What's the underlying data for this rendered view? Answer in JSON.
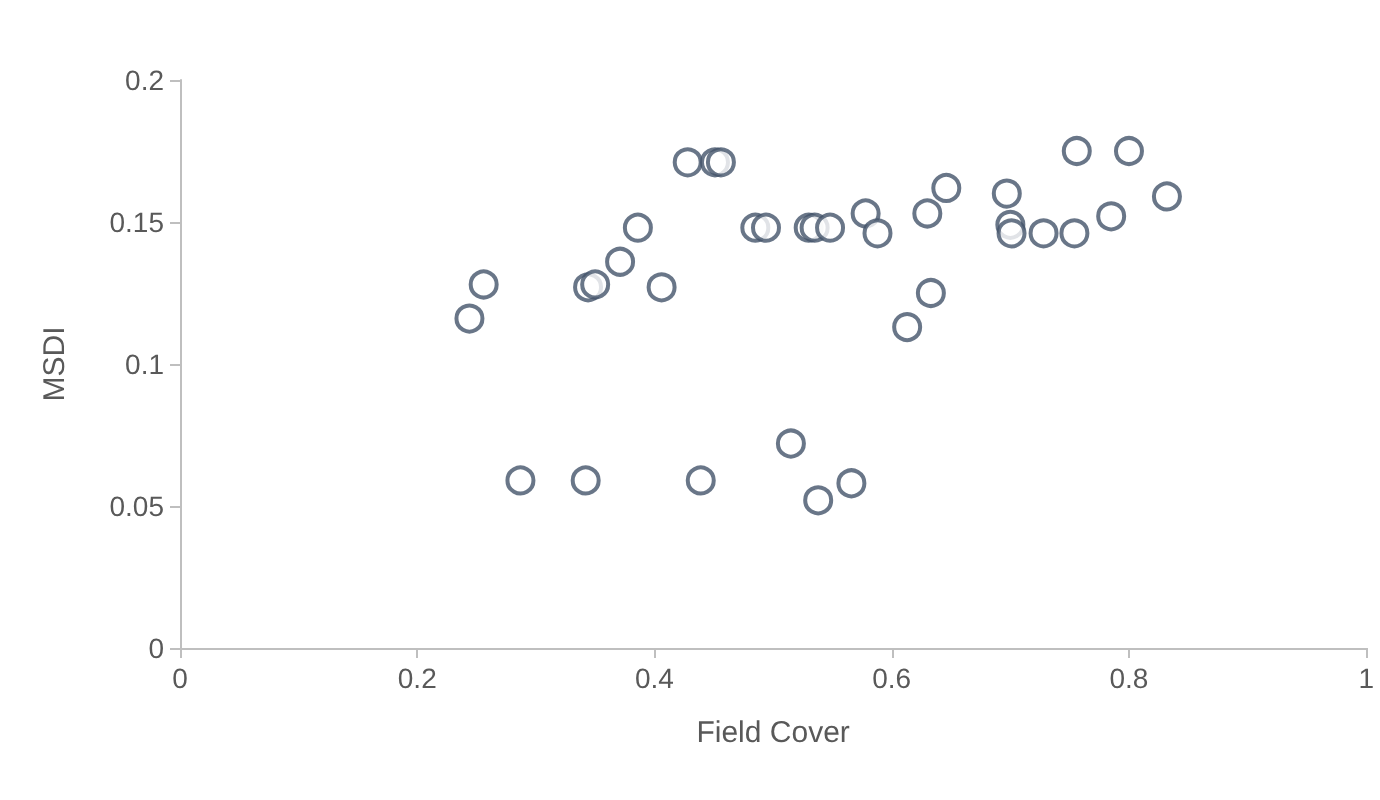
{
  "chart_data": {
    "type": "scatter",
    "xlabel": "Field Cover",
    "ylabel": "MSDI",
    "marker": "circle",
    "grid": false,
    "xlim": [
      0,
      1
    ],
    "xticks": [
      0,
      0.2,
      0.4,
      0.6,
      0.8,
      1
    ],
    "ylim": [
      0,
      0.2
    ],
    "yticks": [
      0,
      0.05,
      0.1,
      0.15,
      0.2
    ],
    "series": [
      {
        "color": "#44546a",
        "x": [
          0.244,
          0.256,
          0.287,
          0.342,
          0.344,
          0.35,
          0.371,
          0.386,
          0.406,
          0.428,
          0.439,
          0.451,
          0.456,
          0.485,
          0.494,
          0.515,
          0.53,
          0.535,
          0.538,
          0.548,
          0.566,
          0.578,
          0.588,
          0.613,
          0.63,
          0.633,
          0.646,
          0.697,
          0.7,
          0.701,
          0.728,
          0.754,
          0.756,
          0.785,
          0.8,
          0.832
        ],
        "values": [
          0.116,
          0.128,
          0.059,
          0.059,
          0.127,
          0.128,
          0.136,
          0.148,
          0.127,
          0.171,
          0.059,
          0.171,
          0.171,
          0.148,
          0.148,
          0.072,
          0.148,
          0.148,
          0.052,
          0.148,
          0.058,
          0.153,
          0.146,
          0.113,
          0.153,
          0.125,
          0.162,
          0.16,
          0.149,
          0.146,
          0.146,
          0.146,
          0.175,
          0.152,
          0.175,
          0.159
        ]
      }
    ]
  }
}
